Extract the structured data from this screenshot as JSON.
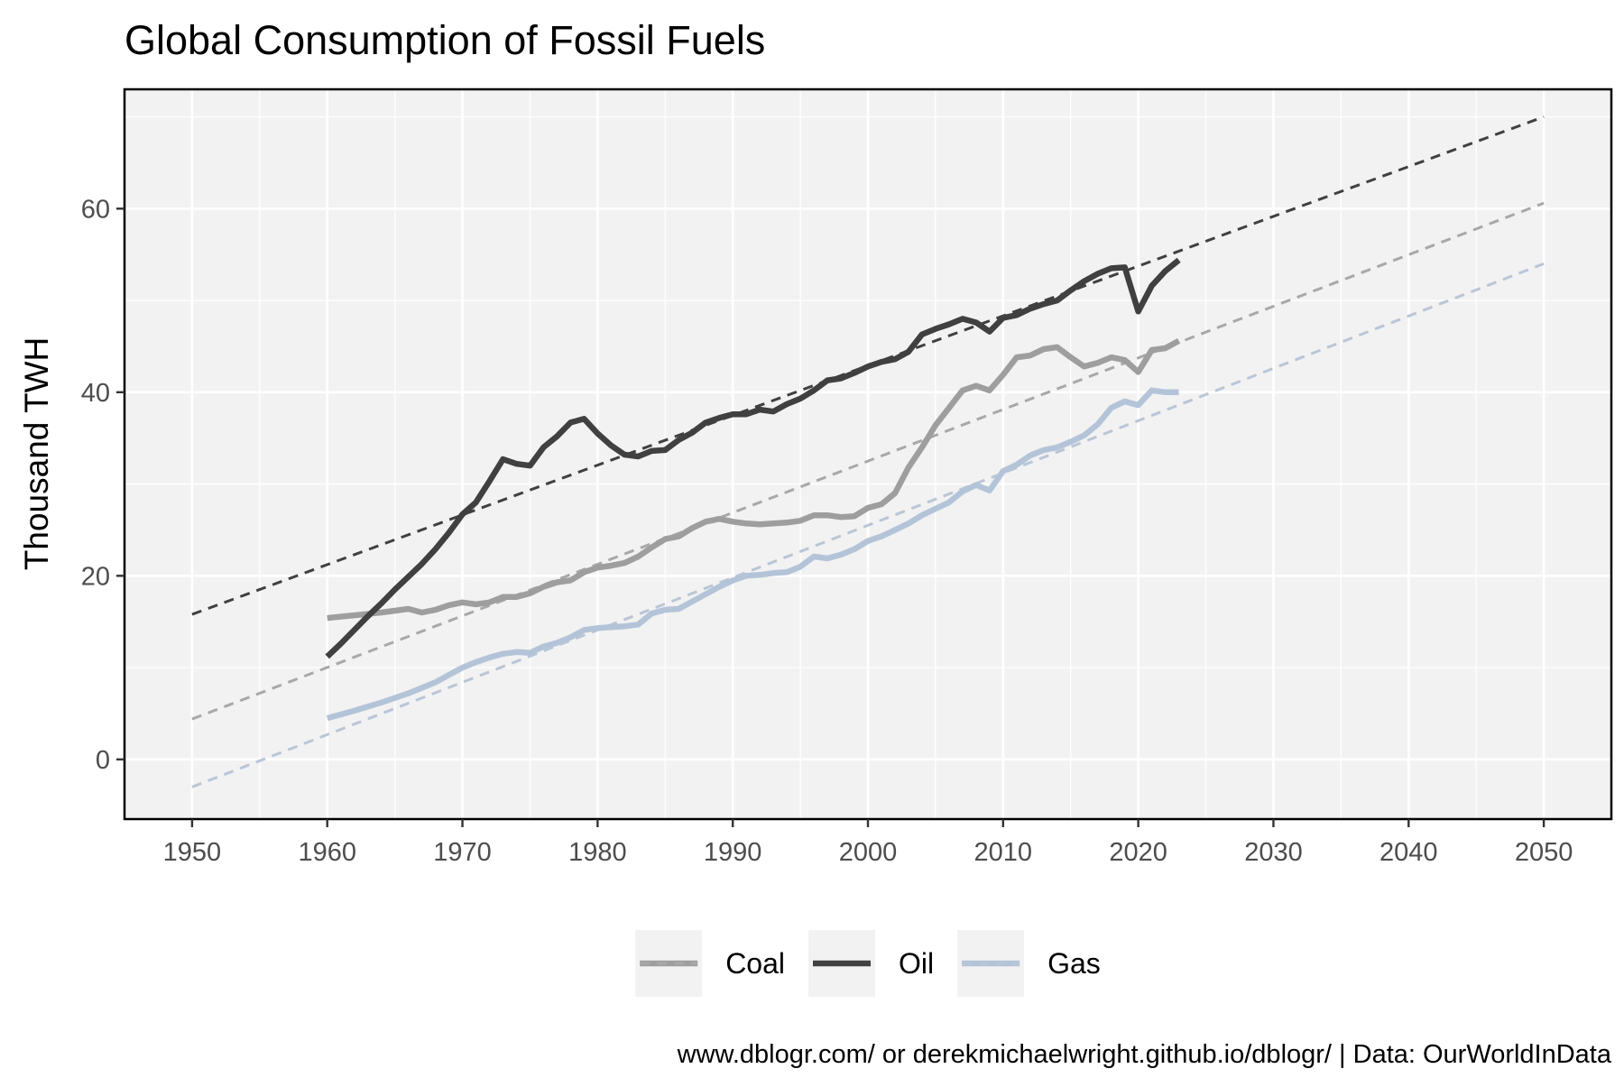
{
  "chart_data": {
    "type": "line",
    "title": "Global Consumption of Fossil Fuels",
    "xlabel": "",
    "ylabel": "Thousand TWH",
    "caption": "www.dblogr.com/ or derekmichaelwright.github.io/dblogr/ | Data: OurWorldInData",
    "xlim": [
      1945,
      2055
    ],
    "ylim": [
      -6.5,
      73
    ],
    "x_ticks": [
      1950,
      1960,
      1970,
      1980,
      1990,
      2000,
      2010,
      2020,
      2030,
      2040,
      2050
    ],
    "y_ticks": [
      0,
      20,
      40,
      60
    ],
    "grid": true,
    "legend_position": "bottom",
    "series": [
      {
        "name": "Coal",
        "color": "#9e9e9e",
        "x": [
          1960,
          1962,
          1964,
          1966,
          1967,
          1968,
          1969,
          1970,
          1971,
          1972,
          1973,
          1974,
          1975,
          1976,
          1977,
          1978,
          1979,
          1980,
          1981,
          1982,
          1983,
          1984,
          1985,
          1986,
          1987,
          1988,
          1989,
          1990,
          1991,
          1992,
          1993,
          1994,
          1995,
          1996,
          1997,
          1998,
          1999,
          2000,
          2001,
          2002,
          2003,
          2004,
          2005,
          2006,
          2007,
          2008,
          2009,
          2010,
          2011,
          2012,
          2013,
          2014,
          2015,
          2016,
          2017,
          2018,
          2019,
          2020,
          2021,
          2022,
          2023
        ],
        "y": [
          15.4,
          15.7,
          16.0,
          16.4,
          16.0,
          16.3,
          16.8,
          17.1,
          16.9,
          17.1,
          17.7,
          17.7,
          18.1,
          18.8,
          19.3,
          19.5,
          20.4,
          20.9,
          21.1,
          21.4,
          22.1,
          23.1,
          24.0,
          24.3,
          25.2,
          25.9,
          26.2,
          25.9,
          25.7,
          25.6,
          25.7,
          25.8,
          26.0,
          26.6,
          26.6,
          26.4,
          26.5,
          27.4,
          27.8,
          29.0,
          31.8,
          34.0,
          36.4,
          38.3,
          40.2,
          40.7,
          40.2,
          41.9,
          43.8,
          44.0,
          44.7,
          44.9,
          43.8,
          42.8,
          43.2,
          43.8,
          43.5,
          42.2,
          44.6,
          44.8,
          45.6
        ]
      },
      {
        "name": "Oil",
        "color": "#404040",
        "x": [
          1960,
          1961,
          1962,
          1963,
          1964,
          1965,
          1966,
          1967,
          1968,
          1969,
          1970,
          1971,
          1972,
          1973,
          1974,
          1975,
          1976,
          1977,
          1978,
          1979,
          1980,
          1981,
          1982,
          1983,
          1984,
          1985,
          1986,
          1987,
          1988,
          1989,
          1990,
          1991,
          1992,
          1993,
          1994,
          1995,
          1996,
          1997,
          1998,
          1999,
          2000,
          2001,
          2002,
          2003,
          2004,
          2005,
          2006,
          2007,
          2008,
          2009,
          2010,
          2011,
          2012,
          2013,
          2014,
          2015,
          2016,
          2017,
          2018,
          2019,
          2020,
          2021,
          2022,
          2023
        ],
        "y": [
          11.2,
          12.6,
          14.1,
          15.6,
          17.0,
          18.5,
          19.9,
          21.3,
          22.9,
          24.7,
          26.7,
          28.0,
          30.3,
          32.7,
          32.2,
          32.0,
          34.0,
          35.2,
          36.7,
          37.1,
          35.5,
          34.2,
          33.2,
          33.0,
          33.6,
          33.7,
          34.8,
          35.6,
          36.7,
          37.2,
          37.6,
          37.6,
          38.1,
          37.9,
          38.7,
          39.3,
          40.2,
          41.3,
          41.5,
          42.1,
          42.8,
          43.3,
          43.6,
          44.4,
          46.3,
          46.9,
          47.4,
          48.0,
          47.6,
          46.6,
          48.1,
          48.4,
          49.1,
          49.6,
          50.0,
          51.1,
          52.1,
          52.9,
          53.5,
          53.6,
          48.8,
          51.6,
          53.2,
          54.4
        ]
      },
      {
        "name": "Gas",
        "color": "#b4c4d8",
        "x": [
          1960,
          1962,
          1964,
          1966,
          1968,
          1969,
          1970,
          1971,
          1972,
          1973,
          1974,
          1975,
          1976,
          1977,
          1978,
          1979,
          1980,
          1981,
          1982,
          1983,
          1984,
          1985,
          1986,
          1987,
          1988,
          1989,
          1990,
          1991,
          1992,
          1993,
          1994,
          1995,
          1996,
          1997,
          1998,
          1999,
          2000,
          2001,
          2002,
          2003,
          2004,
          2005,
          2006,
          2007,
          2008,
          2009,
          2010,
          2011,
          2012,
          2013,
          2014,
          2015,
          2016,
          2017,
          2018,
          2019,
          2020,
          2021,
          2022,
          2023
        ],
        "y": [
          4.5,
          5.3,
          6.2,
          7.2,
          8.4,
          9.2,
          10.0,
          10.6,
          11.1,
          11.5,
          11.7,
          11.6,
          12.3,
          12.7,
          13.3,
          14.1,
          14.3,
          14.4,
          14.5,
          14.7,
          15.9,
          16.3,
          16.4,
          17.2,
          18.0,
          18.8,
          19.5,
          20.0,
          20.1,
          20.3,
          20.4,
          21.0,
          22.1,
          21.9,
          22.3,
          22.9,
          23.8,
          24.3,
          25.0,
          25.7,
          26.6,
          27.3,
          28.0,
          29.2,
          29.9,
          29.3,
          31.4,
          32.1,
          33.1,
          33.7,
          34.0,
          34.6,
          35.3,
          36.5,
          38.3,
          39.0,
          38.6,
          40.2,
          40.0,
          40.0
        ]
      }
    ],
    "trend_lines": [
      {
        "name": "Coal",
        "color": "#a8a8a8",
        "x": [
          1950,
          2050
        ],
        "y": [
          4.4,
          60.6
        ]
      },
      {
        "name": "Oil",
        "color": "#404040",
        "x": [
          1950,
          2050
        ],
        "y": [
          15.8,
          70.0
        ]
      },
      {
        "name": "Gas",
        "color": "#b9c6d6",
        "x": [
          1950,
          2050
        ],
        "y": [
          -3.0,
          54.0
        ]
      }
    ]
  }
}
